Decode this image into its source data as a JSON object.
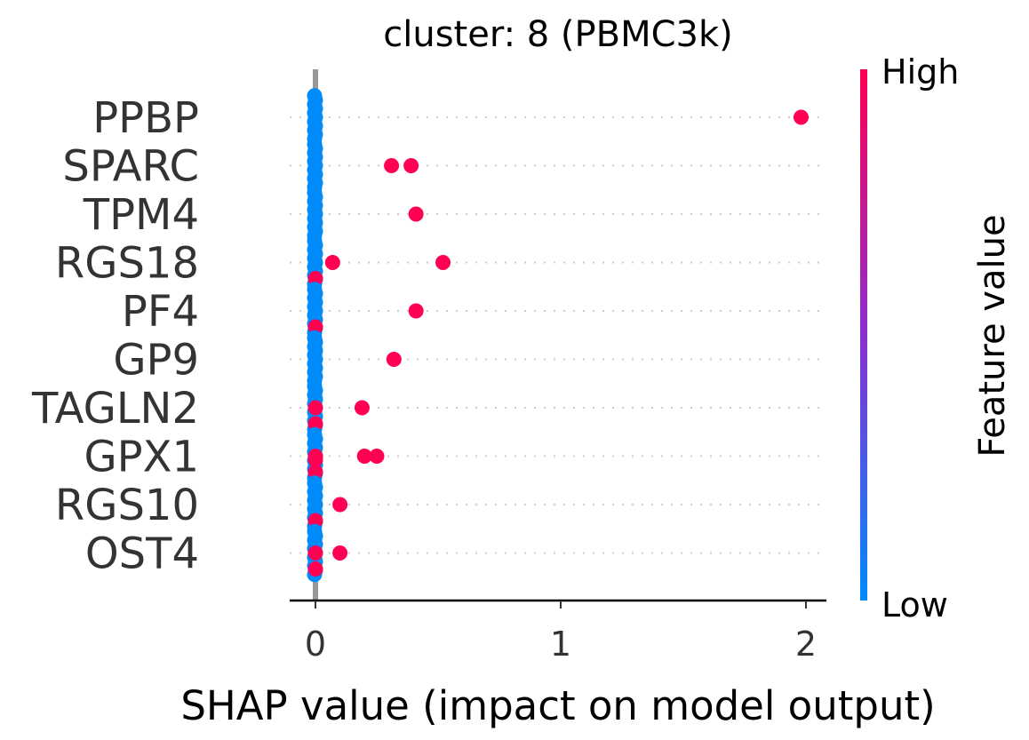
{
  "chart_data": {
    "type": "scatter",
    "title": "cluster: 8 (PBMC3k)",
    "xlabel": "SHAP value (impact on model output)",
    "xlim": [
      -0.1,
      2.09
    ],
    "xticks": [
      "0",
      "1",
      "2"
    ],
    "xtick_values": [
      0,
      1,
      2
    ],
    "grid": false,
    "colorbar": {
      "title": "Feature value",
      "high_label": "High",
      "low_label": "Low",
      "high_color": "#ff0052",
      "low_color": "#008bfb"
    },
    "features": [
      {
        "name": "PPBP",
        "outliers": [
          {
            "x": 1.98,
            "level": 1
          }
        ],
        "cluster": {
          "x": 0.0,
          "spread": 0.05,
          "high_points": []
        }
      },
      {
        "name": "SPARC",
        "outliers": [
          {
            "x": 0.31,
            "level": 1
          },
          {
            "x": 0.39,
            "level": 1
          }
        ],
        "cluster": {
          "x": 0.0,
          "spread": 0.05,
          "high_points": []
        }
      },
      {
        "name": "TPM4",
        "outliers": [
          {
            "x": 0.41,
            "level": 1
          }
        ],
        "cluster": {
          "x": 0.0,
          "spread": 0.05,
          "high_points": []
        }
      },
      {
        "name": "RGS18",
        "outliers": [
          {
            "x": 0.07,
            "level": 1
          },
          {
            "x": 0.52,
            "level": 1
          }
        ],
        "cluster": {
          "x": 0.0,
          "spread": 0.05,
          "high_points": [
            0.0
          ]
        }
      },
      {
        "name": "PF4",
        "outliers": [
          {
            "x": 0.41,
            "level": 1
          }
        ],
        "cluster": {
          "x": 0.0,
          "spread": 0.05,
          "high_points": [
            0.0
          ]
        }
      },
      {
        "name": "GP9",
        "outliers": [
          {
            "x": 0.32,
            "level": 1
          }
        ],
        "cluster": {
          "x": 0.0,
          "spread": 0.05,
          "high_points": []
        }
      },
      {
        "name": "TAGLN2",
        "outliers": [
          {
            "x": 0.19,
            "level": 1
          }
        ],
        "cluster": {
          "x": 0.0,
          "spread": 0.05,
          "high_points": [
            0.0,
            0.0
          ]
        }
      },
      {
        "name": "GPX1",
        "outliers": [
          {
            "x": 0.2,
            "level": 1
          },
          {
            "x": 0.25,
            "level": 1
          }
        ],
        "cluster": {
          "x": 0.0,
          "spread": 0.05,
          "high_points": [
            0.0,
            0.0,
            0.0
          ]
        }
      },
      {
        "name": "RGS10",
        "outliers": [
          {
            "x": 0.1,
            "level": 1
          }
        ],
        "cluster": {
          "x": 0.0,
          "spread": 0.05,
          "high_points": [
            0.0
          ]
        }
      },
      {
        "name": "OST4",
        "outliers": [
          {
            "x": 0.1,
            "level": 1
          }
        ],
        "cluster": {
          "x": 0.0,
          "spread": 0.05,
          "high_points": [
            0.0,
            0.0
          ]
        }
      }
    ]
  }
}
